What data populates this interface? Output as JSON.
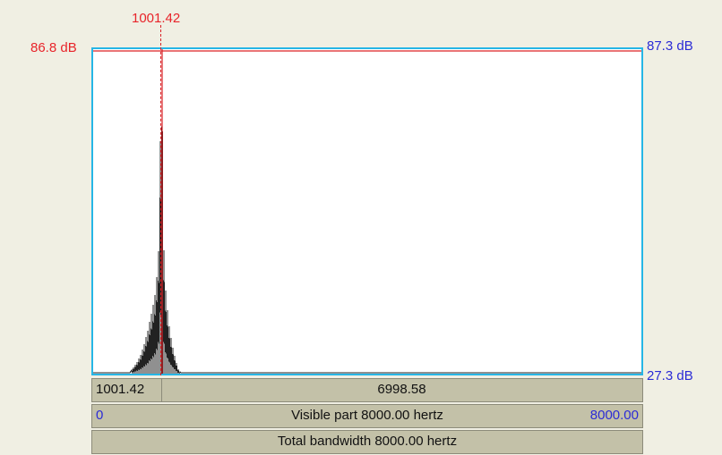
{
  "cursor": {
    "frequency_label": "1001.42",
    "frequency_hz": 1001.42
  },
  "left_axis": {
    "top_label": "86.8 dB",
    "top_value_db": 86.8
  },
  "right_axis": {
    "top_label": "87.3 dB",
    "bottom_label": "27.3 dB",
    "top_value_db": 87.3,
    "bottom_value_db": 27.3
  },
  "bottom_bars": {
    "selection_left": "1001.42",
    "selection_right": "6998.58",
    "visible_start": "0",
    "visible_text": "Visible part 8000.00 hertz",
    "visible_end": "8000.00",
    "total_text": "Total bandwidth 8000.00 hertz"
  },
  "colors": {
    "background": "#f0efe3",
    "plot_border": "#26b6e6",
    "cursor": "#d92024",
    "spectrum": "#222222",
    "bar_fill": "#c3c1a8",
    "left_labels": "#e8242a",
    "right_labels": "#2b2bd6"
  },
  "chart_data": {
    "type": "line",
    "x_range_hz": [
      0,
      8000
    ],
    "y_range_db": [
      27.3,
      87.3
    ],
    "peak_frequency_hz": 1001.42,
    "peak_level_db": 86.8
  }
}
